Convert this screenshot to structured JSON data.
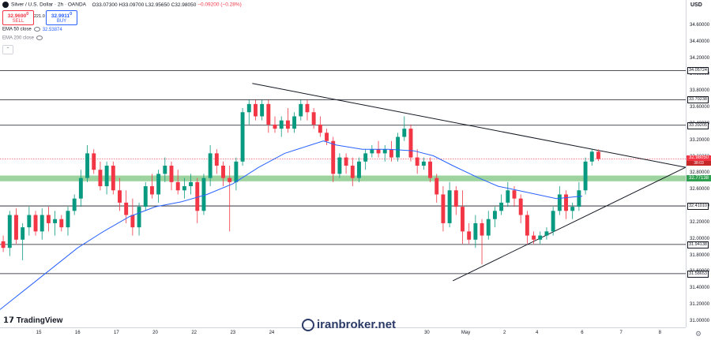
{
  "header": {
    "symbol": "Silver / U.S. Dollar · 2h · OANDA",
    "ohlc": "O33.07300 H33.09700 L32.95650 C32.98050",
    "change": "−0.09200 (−0.28%)"
  },
  "trade": {
    "sell_price": "32.9690",
    "sell_sup": "0",
    "sell_label": "SELL",
    "spread": "221.0",
    "buy_price": "32.9911",
    "buy_sup": "0",
    "buy_label": "BUY"
  },
  "indicators": {
    "ema50_label": "EMA 50 close",
    "ema50_value": "32.53874",
    "ema200_label": "EMA 200 close"
  },
  "branding": {
    "tradingview": "TradingView",
    "watermark": "iranbroker.net"
  },
  "colors": {
    "bull": "#089981",
    "bear": "#f23645",
    "ema50": "#2962ff",
    "zone": "#4caf50",
    "trendline": "#131722"
  },
  "chart_data": {
    "type": "candlestick",
    "timeframe": "2h",
    "currency": "USD",
    "ylim": [
      31.0,
      34.8
    ],
    "y_ticks": [
      "34.60000",
      "34.40000",
      "34.20000",
      "34.00000",
      "33.80000",
      "33.60000",
      "33.40000",
      "33.20000",
      "33.00000",
      "32.80000",
      "32.60000",
      "32.40000",
      "32.20000",
      "32.00000",
      "31.80000",
      "31.60000",
      "31.40000",
      "31.20000",
      "31.00000"
    ],
    "x_labels": [
      {
        "label": "15",
        "pos": 6
      },
      {
        "label": "16",
        "pos": 12
      },
      {
        "label": "17",
        "pos": 18
      },
      {
        "label": "20",
        "pos": 24
      },
      {
        "label": "22",
        "pos": 30
      },
      {
        "label": "23",
        "pos": 36
      },
      {
        "label": "24",
        "pos": 42
      },
      {
        "label": "30",
        "pos": 66
      },
      {
        "label": "May",
        "pos": 72
      },
      {
        "label": "2",
        "pos": 78
      },
      {
        "label": "4",
        "pos": 83
      },
      {
        "label": "6",
        "pos": 90
      },
      {
        "label": "7",
        "pos": 96
      },
      {
        "label": "8",
        "pos": 102
      }
    ],
    "x_range": [
      0,
      106
    ],
    "horizontal_levels": [
      {
        "value": 34.05724,
        "label": "34.05724"
      },
      {
        "value": 33.70238,
        "label": "33.70238"
      },
      {
        "value": 33.39205,
        "label": "33.39205"
      },
      {
        "value": 32.4101,
        "label": "32.41010"
      },
      {
        "value": 31.94138,
        "label": "31.94138"
      },
      {
        "value": 31.58653,
        "label": "31.58653"
      }
    ],
    "zone": {
      "low": 32.71,
      "high": 32.78,
      "label": "32.77138"
    },
    "last_price": {
      "value": 32.9805,
      "label": "32.98050",
      "sub": "38:03"
    },
    "trendlines": [
      {
        "name": "resistance",
        "from": [
          39,
          33.9
        ],
        "to": [
          106,
          32.88
        ]
      },
      {
        "name": "support",
        "from": [
          70,
          31.5
        ],
        "to": [
          106,
          32.88
        ]
      }
    ],
    "ema50": [
      [
        0,
        31.15
      ],
      [
        4,
        31.4
      ],
      [
        8,
        31.65
      ],
      [
        12,
        31.9
      ],
      [
        16,
        32.1
      ],
      [
        20,
        32.28
      ],
      [
        24,
        32.4
      ],
      [
        28,
        32.46
      ],
      [
        32,
        32.55
      ],
      [
        36,
        32.68
      ],
      [
        40,
        32.88
      ],
      [
        44,
        33.05
      ],
      [
        48,
        33.15
      ],
      [
        50,
        33.2
      ],
      [
        52,
        33.15
      ],
      [
        56,
        33.1
      ],
      [
        60,
        33.1
      ],
      [
        64,
        33.08
      ],
      [
        67,
        33.02
      ],
      [
        70,
        32.9
      ],
      [
        74,
        32.75
      ],
      [
        77,
        32.65
      ],
      [
        80,
        32.6
      ],
      [
        83,
        32.55
      ],
      [
        86,
        32.5
      ],
      [
        90,
        32.53
      ]
    ],
    "candles": [
      [
        0,
        31.98,
        32.05,
        31.85,
        31.9
      ],
      [
        1,
        31.9,
        32.35,
        31.8,
        32.3
      ],
      [
        2,
        32.3,
        32.38,
        31.95,
        32.0
      ],
      [
        3,
        32.0,
        32.2,
        31.75,
        32.15
      ],
      [
        4,
        32.15,
        32.4,
        32.05,
        32.3
      ],
      [
        5,
        32.3,
        32.35,
        32.05,
        32.1
      ],
      [
        6,
        32.1,
        32.38,
        32.0,
        32.3
      ],
      [
        7,
        32.3,
        32.4,
        32.1,
        32.2
      ],
      [
        8,
        32.2,
        32.35,
        32.05,
        32.25
      ],
      [
        9,
        32.25,
        32.3,
        32.1,
        32.15
      ],
      [
        10,
        32.15,
        32.4,
        32.05,
        32.35
      ],
      [
        11,
        32.35,
        32.55,
        32.3,
        32.5
      ],
      [
        12,
        32.5,
        32.85,
        32.4,
        32.75
      ],
      [
        13,
        32.75,
        33.15,
        32.7,
        33.05
      ],
      [
        14,
        33.05,
        33.1,
        32.8,
        32.85
      ],
      [
        15,
        32.85,
        32.95,
        32.6,
        32.65
      ],
      [
        16,
        32.65,
        32.95,
        32.55,
        32.9
      ],
      [
        17,
        32.9,
        32.95,
        32.55,
        32.6
      ],
      [
        18,
        32.6,
        32.75,
        32.35,
        32.45
      ],
      [
        19,
        32.45,
        32.6,
        32.2,
        32.3
      ],
      [
        20,
        32.3,
        32.5,
        32.05,
        32.15
      ],
      [
        21,
        32.15,
        32.45,
        32.05,
        32.4
      ],
      [
        22,
        32.4,
        32.7,
        32.35,
        32.65
      ],
      [
        23,
        32.65,
        32.8,
        32.5,
        32.55
      ],
      [
        24,
        32.55,
        32.85,
        32.45,
        32.8
      ],
      [
        25,
        32.8,
        33.0,
        32.7,
        32.9
      ],
      [
        26,
        32.9,
        32.95,
        32.6,
        32.7
      ],
      [
        27,
        32.7,
        32.85,
        32.55,
        32.6
      ],
      [
        28,
        32.6,
        32.75,
        32.5,
        32.65
      ],
      [
        29,
        32.65,
        32.8,
        32.55,
        32.7
      ],
      [
        30,
        32.7,
        32.75,
        32.2,
        32.35
      ],
      [
        31,
        32.35,
        32.8,
        32.3,
        32.75
      ],
      [
        32,
        32.75,
        33.15,
        32.65,
        33.05
      ],
      [
        33,
        33.05,
        33.1,
        32.8,
        32.9
      ],
      [
        34,
        32.9,
        32.95,
        32.65,
        32.75
      ],
      [
        35,
        32.75,
        32.9,
        32.1,
        32.7
      ],
      [
        36,
        32.7,
        33.0,
        32.6,
        32.95
      ],
      [
        37,
        32.95,
        33.6,
        32.9,
        33.55
      ],
      [
        38,
        33.55,
        33.7,
        33.4,
        33.65
      ],
      [
        39,
        33.65,
        33.7,
        33.45,
        33.5
      ],
      [
        40,
        33.5,
        33.7,
        33.45,
        33.65
      ],
      [
        41,
        33.65,
        33.7,
        33.3,
        33.4
      ],
      [
        42,
        33.4,
        33.5,
        33.3,
        33.35
      ],
      [
        43,
        33.35,
        33.5,
        33.25,
        33.45
      ],
      [
        44,
        33.45,
        33.6,
        33.3,
        33.35
      ],
      [
        45,
        33.35,
        33.55,
        33.3,
        33.5
      ],
      [
        46,
        33.5,
        33.7,
        33.45,
        33.65
      ],
      [
        47,
        33.65,
        33.7,
        33.45,
        33.55
      ],
      [
        48,
        33.55,
        33.6,
        33.35,
        33.4
      ],
      [
        49,
        33.4,
        33.5,
        33.25,
        33.3
      ],
      [
        50,
        33.3,
        33.35,
        33.15,
        33.2
      ],
      [
        51,
        33.2,
        33.25,
        32.7,
        32.8
      ],
      [
        52,
        32.8,
        33.05,
        32.75,
        33.0
      ],
      [
        53,
        33.0,
        33.05,
        32.8,
        32.9
      ],
      [
        54,
        32.9,
        33.0,
        32.65,
        32.75
      ],
      [
        55,
        32.75,
        33.0,
        32.7,
        32.95
      ],
      [
        56,
        32.95,
        33.1,
        32.85,
        33.05
      ],
      [
        57,
        33.05,
        33.15,
        33.0,
        33.1
      ],
      [
        58,
        33.1,
        33.2,
        33.0,
        33.05
      ],
      [
        59,
        33.05,
        33.15,
        32.95,
        33.1
      ],
      [
        60,
        33.1,
        33.2,
        32.95,
        33.0
      ],
      [
        61,
        33.0,
        33.3,
        32.95,
        33.25
      ],
      [
        62,
        33.25,
        33.5,
        33.2,
        33.35
      ],
      [
        63,
        33.35,
        33.4,
        32.95,
        33.0
      ],
      [
        64,
        33.0,
        33.1,
        32.8,
        32.9
      ],
      [
        65,
        32.9,
        33.0,
        32.85,
        32.95
      ],
      [
        66,
        32.95,
        33.0,
        32.7,
        32.75
      ],
      [
        67,
        32.75,
        32.8,
        32.45,
        32.55
      ],
      [
        68,
        32.55,
        32.65,
        32.1,
        32.2
      ],
      [
        69,
        32.2,
        32.7,
        32.15,
        32.6
      ],
      [
        70,
        32.6,
        32.65,
        32.3,
        32.4
      ],
      [
        71,
        32.4,
        32.6,
        31.95,
        32.1
      ],
      [
        72,
        32.1,
        32.2,
        31.95,
        32.0
      ],
      [
        73,
        32.0,
        32.3,
        31.9,
        32.2
      ],
      [
        74,
        32.2,
        32.25,
        31.7,
        32.05
      ],
      [
        75,
        32.05,
        32.35,
        32.0,
        32.25
      ],
      [
        76,
        32.25,
        32.4,
        32.15,
        32.35
      ],
      [
        77,
        32.35,
        32.55,
        32.3,
        32.45
      ],
      [
        78,
        32.45,
        32.7,
        32.4,
        32.6
      ],
      [
        79,
        32.6,
        32.65,
        32.4,
        32.5
      ],
      [
        80,
        32.5,
        32.55,
        32.2,
        32.3
      ],
      [
        81,
        32.3,
        32.35,
        31.95,
        32.05
      ],
      [
        82,
        32.05,
        32.1,
        31.95,
        32.0
      ],
      [
        83,
        32.0,
        32.1,
        31.95,
        32.05
      ],
      [
        84,
        32.05,
        32.15,
        32.0,
        32.1
      ],
      [
        85,
        32.1,
        32.4,
        32.05,
        32.35
      ],
      [
        86,
        32.35,
        32.65,
        32.3,
        32.55
      ],
      [
        87,
        32.55,
        32.6,
        32.25,
        32.35
      ],
      [
        88,
        32.35,
        32.45,
        32.25,
        32.4
      ],
      [
        89,
        32.4,
        32.7,
        32.35,
        32.6
      ],
      [
        90,
        32.6,
        33.0,
        32.55,
        32.95
      ],
      [
        91,
        32.95,
        33.1,
        32.9,
        33.07
      ],
      [
        92,
        33.07,
        33.097,
        32.9565,
        32.9805
      ]
    ]
  }
}
